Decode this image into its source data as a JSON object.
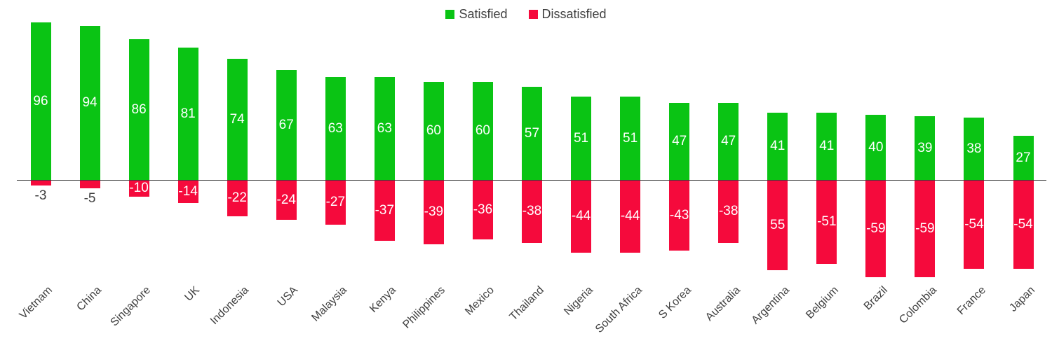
{
  "colors": {
    "satisfied": "#0ac414",
    "dissatisfied": "#f50a3c",
    "axis_line": "#3a3a3a",
    "dark_text": "#404040",
    "bar_label_text": "#ffffff"
  },
  "legend": {
    "items": [
      {
        "label": "Satisfied",
        "color": "#0ac414"
      },
      {
        "label": "Dissatisfied",
        "color": "#f50a3c"
      }
    ]
  },
  "chart_data": {
    "type": "bar",
    "subtype": "diverging-vertical",
    "title": "",
    "xlabel": "",
    "ylabel": "",
    "grid": false,
    "legend_position": "top-center",
    "baseline": 0,
    "ylim": [
      -70,
      100
    ],
    "categories": [
      "Vietnam",
      "China",
      "Singapore",
      "UK",
      "Indonesia",
      "USA",
      "Malaysia",
      "Kenya",
      "Philippines",
      "Mexico",
      "Thailand",
      "Nigeria",
      "South Africa",
      "S Korea",
      "Australia",
      "Argentina",
      "Belgium",
      "Brazil",
      "Colombia",
      "France",
      "Japan"
    ],
    "series": [
      {
        "name": "Satisfied",
        "color": "#0ac414",
        "values": [
          96,
          94,
          86,
          81,
          74,
          67,
          63,
          63,
          60,
          60,
          57,
          51,
          51,
          47,
          47,
          41,
          41,
          40,
          39,
          38,
          27
        ],
        "labels": [
          "96",
          "94",
          "86",
          "81",
          "74",
          "67",
          "63",
          "63",
          "60",
          "60",
          "57",
          "51",
          "51",
          "47",
          "47",
          "41",
          "41",
          "40",
          "39",
          "38",
          "27"
        ]
      },
      {
        "name": "Dissatisfied",
        "color": "#f50a3c",
        "values": [
          -3,
          -5,
          -10,
          -14,
          -22,
          -24,
          -27,
          -37,
          -39,
          -36,
          -38,
          -44,
          -44,
          -43,
          -38,
          -55,
          -51,
          -59,
          -59,
          -54,
          -54
        ],
        "labels": [
          "-3",
          "-5",
          "-10",
          "-14",
          "-22",
          "-24",
          "-27",
          "-37",
          "-39",
          "-36",
          "-38",
          "-44",
          "-44",
          "-43",
          "-38",
          "55",
          "-51",
          "-59",
          "-59",
          "-54",
          "-54"
        ]
      }
    ]
  }
}
